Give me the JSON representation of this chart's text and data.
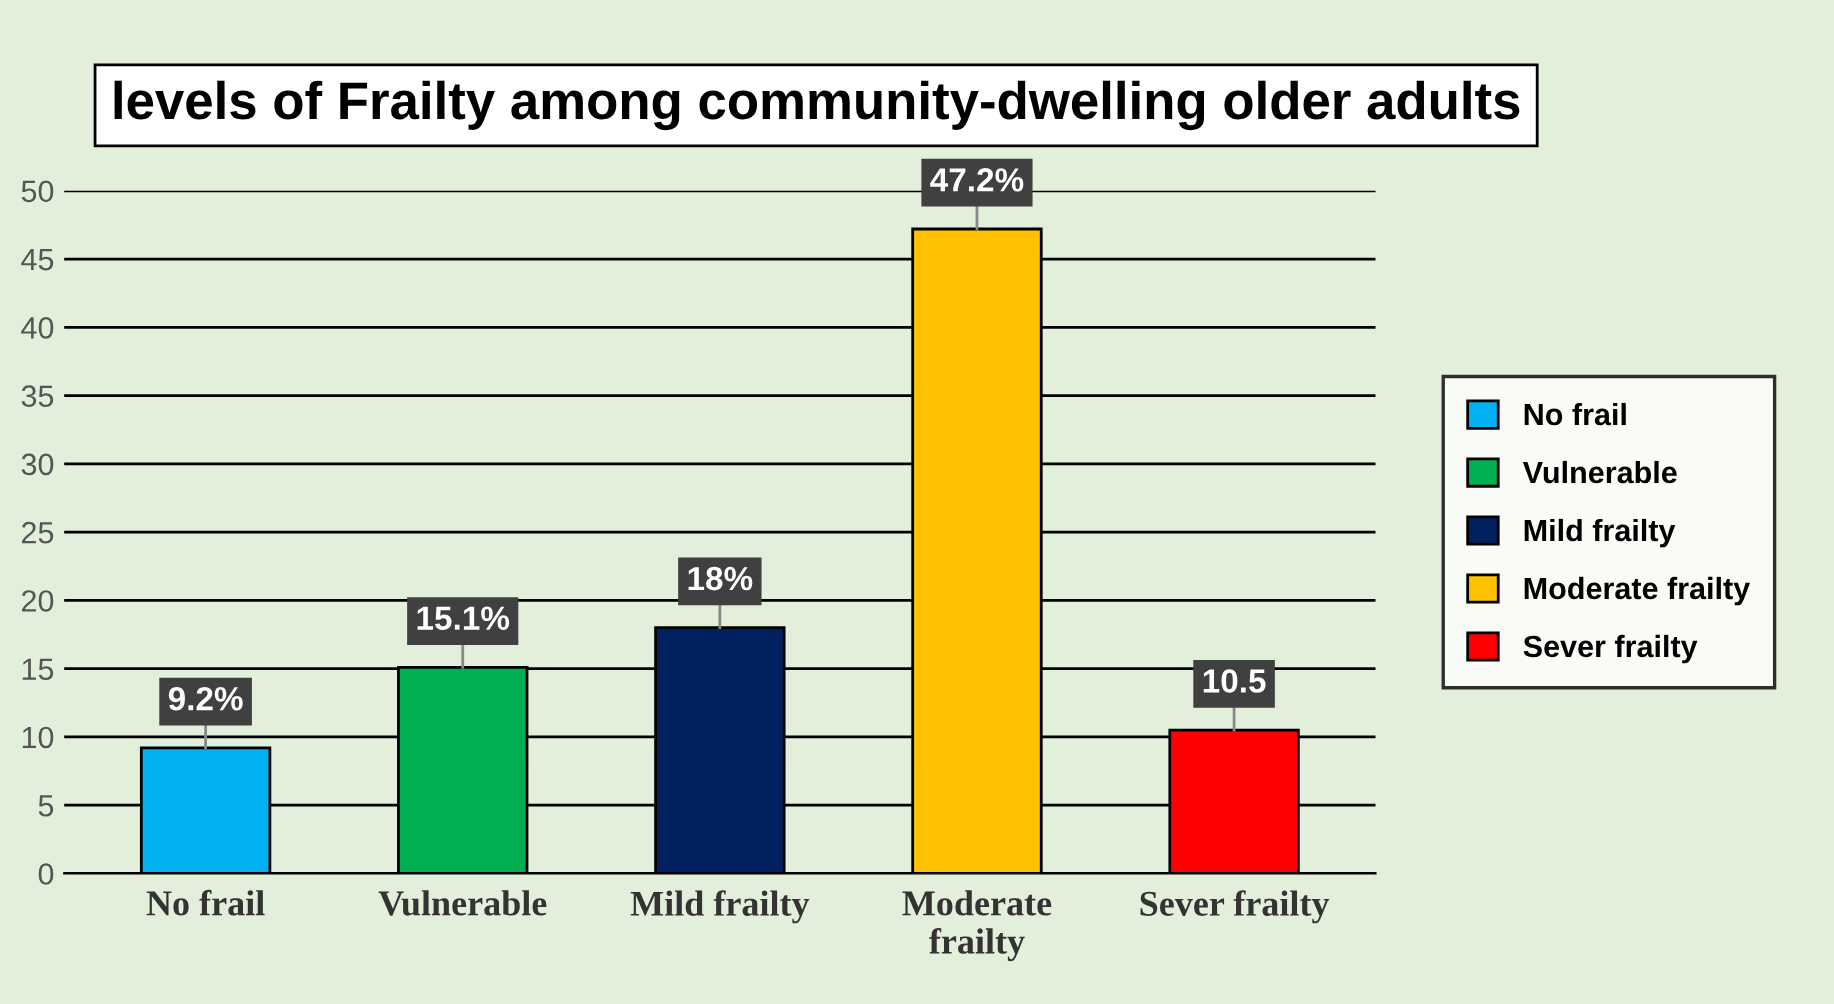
{
  "chart_data": {
    "type": "bar",
    "title": "levels of Frailty among community-dwelling older adults",
    "categories": [
      "No frail",
      "Vulnerable",
      "Mild frailty",
      "Moderate frailty",
      "Sever frailty"
    ],
    "series": [
      {
        "name": "No frail",
        "color": "#00b0f0",
        "values": [
          9.2,
          null,
          null,
          null,
          null
        ],
        "value_labels": [
          "9.2%",
          null,
          null,
          null,
          null
        ]
      },
      {
        "name": "Vulnerable",
        "color": "#00b050",
        "values": [
          null,
          15.1,
          null,
          null,
          null
        ],
        "value_labels": [
          null,
          "15.1%",
          null,
          null,
          null
        ]
      },
      {
        "name": "Mild frailty",
        "color": "#002060",
        "values": [
          null,
          null,
          18,
          null,
          null
        ],
        "value_labels": [
          null,
          null,
          "18%",
          null,
          null
        ]
      },
      {
        "name": "Moderate frailty",
        "color": "#ffc000",
        "values": [
          null,
          null,
          null,
          47.2,
          null
        ],
        "value_labels": [
          null,
          null,
          null,
          "47.2%",
          null
        ]
      },
      {
        "name": "Sever frailty",
        "color": "#ff0000",
        "values": [
          null,
          null,
          null,
          null,
          10.5
        ],
        "value_labels": [
          null,
          null,
          null,
          null,
          "10.5"
        ]
      }
    ],
    "ylim": [
      0,
      50
    ],
    "yticks": [
      0,
      5,
      10,
      15,
      20,
      25,
      30,
      35,
      40,
      45,
      50
    ],
    "grid": "y",
    "legend": "right"
  }
}
